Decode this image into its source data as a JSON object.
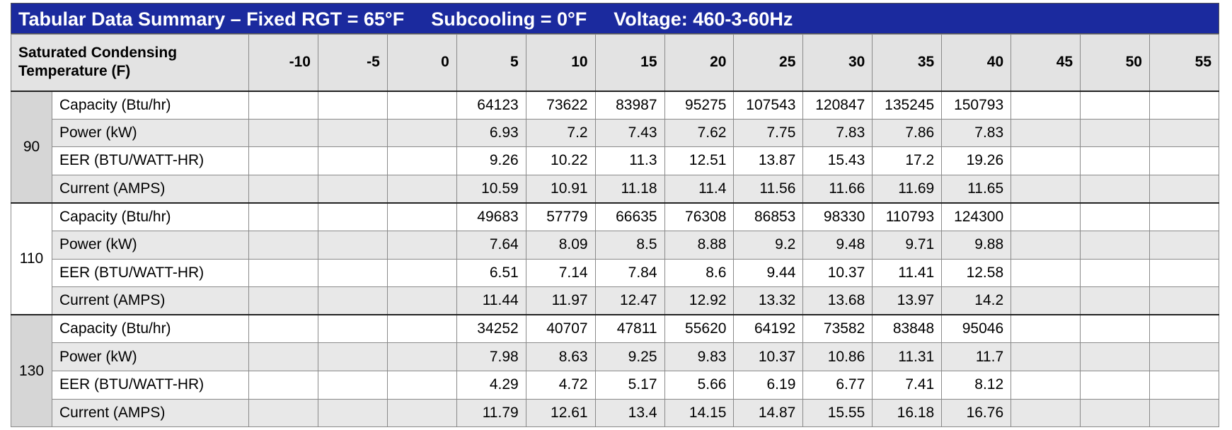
{
  "title": [
    "Tabular Data Summary – Fixed RGT = 65°F",
    "Subcooling = 0°F",
    "Voltage: 460-3-60Hz"
  ],
  "table": {
    "corner": "Saturated Condensing Temperature (F)",
    "columns": [
      -10,
      -5,
      0,
      5,
      10,
      15,
      20,
      25,
      30,
      35,
      40,
      45,
      50,
      55
    ],
    "groups": [
      {
        "label": 90,
        "rows": [
          {
            "label": "Capacity (Btu/hr)",
            "values": [
              null,
              null,
              null,
              64123,
              73622,
              83987,
              95275,
              107543,
              120847,
              135245,
              150793,
              null,
              null,
              null
            ]
          },
          {
            "label": "Power (kW)",
            "values": [
              null,
              null,
              null,
              6.93,
              7.2,
              7.43,
              7.62,
              7.75,
              7.83,
              7.86,
              7.83,
              null,
              null,
              null
            ]
          },
          {
            "label": "EER (BTU/WATT-HR)",
            "values": [
              null,
              null,
              null,
              9.26,
              10.22,
              11.3,
              12.51,
              13.87,
              15.43,
              17.2,
              19.26,
              null,
              null,
              null
            ]
          },
          {
            "label": "Current (AMPS)",
            "values": [
              null,
              null,
              null,
              10.59,
              10.91,
              11.18,
              11.4,
              11.56,
              11.66,
              11.69,
              11.65,
              null,
              null,
              null
            ]
          }
        ]
      },
      {
        "label": 110,
        "rows": [
          {
            "label": "Capacity (Btu/hr)",
            "values": [
              null,
              null,
              null,
              49683,
              57779,
              66635,
              76308,
              86853,
              98330,
              110793,
              124300,
              null,
              null,
              null
            ]
          },
          {
            "label": "Power (kW)",
            "values": [
              null,
              null,
              null,
              7.64,
              8.09,
              8.5,
              8.88,
              9.2,
              9.48,
              9.71,
              9.88,
              null,
              null,
              null
            ]
          },
          {
            "label": "EER (BTU/WATT-HR)",
            "values": [
              null,
              null,
              null,
              6.51,
              7.14,
              7.84,
              8.6,
              9.44,
              10.37,
              11.41,
              12.58,
              null,
              null,
              null
            ]
          },
          {
            "label": "Current (AMPS)",
            "values": [
              null,
              null,
              null,
              11.44,
              11.97,
              12.47,
              12.92,
              13.32,
              13.68,
              13.97,
              14.2,
              null,
              null,
              null
            ]
          }
        ]
      },
      {
        "label": 130,
        "rows": [
          {
            "label": "Capacity (Btu/hr)",
            "values": [
              null,
              null,
              null,
              34252,
              40707,
              47811,
              55620,
              64192,
              73582,
              83848,
              95046,
              null,
              null,
              null
            ]
          },
          {
            "label": "Power (kW)",
            "values": [
              null,
              null,
              null,
              7.98,
              8.63,
              9.25,
              9.83,
              10.37,
              10.86,
              11.31,
              11.7,
              null,
              null,
              null
            ]
          },
          {
            "label": "EER (BTU/WATT-HR)",
            "values": [
              null,
              null,
              null,
              4.29,
              4.72,
              5.17,
              5.66,
              6.19,
              6.77,
              7.41,
              8.12,
              null,
              null,
              null
            ]
          },
          {
            "label": "Current (AMPS)",
            "values": [
              null,
              null,
              null,
              11.79,
              12.61,
              13.4,
              14.15,
              14.87,
              15.55,
              16.18,
              16.76,
              null,
              null,
              null
            ]
          }
        ]
      }
    ]
  }
}
